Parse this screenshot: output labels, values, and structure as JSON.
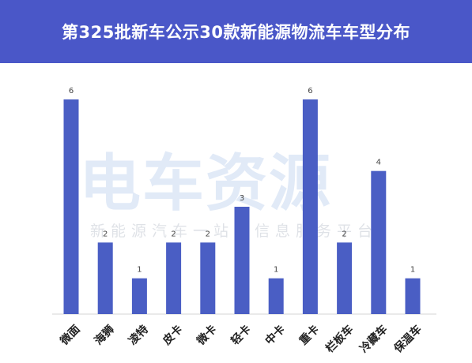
{
  "header": {
    "title": "第325批新车公示30款新能源物流车车型分布"
  },
  "watermark": {
    "logo": "电车资源",
    "slogan": "新能源汽车一站式信息服务平台"
  },
  "colors": {
    "header_bg": "#4a57c8",
    "bar": "#4a5ec4"
  },
  "chart_data": {
    "type": "bar",
    "title": "第325批新车公示30款新能源物流车车型分布",
    "categories": [
      "微面",
      "海狮",
      "凌特",
      "皮卡",
      "微卡",
      "轻卡",
      "中卡",
      "重卡",
      "栏板车",
      "冷藏车",
      "保温车"
    ],
    "values": [
      6,
      2,
      1,
      2,
      2,
      3,
      1,
      6,
      2,
      4,
      1
    ],
    "xlabel": "",
    "ylabel": "",
    "ylim": [
      0,
      6
    ],
    "grid": false,
    "legend": "none"
  }
}
